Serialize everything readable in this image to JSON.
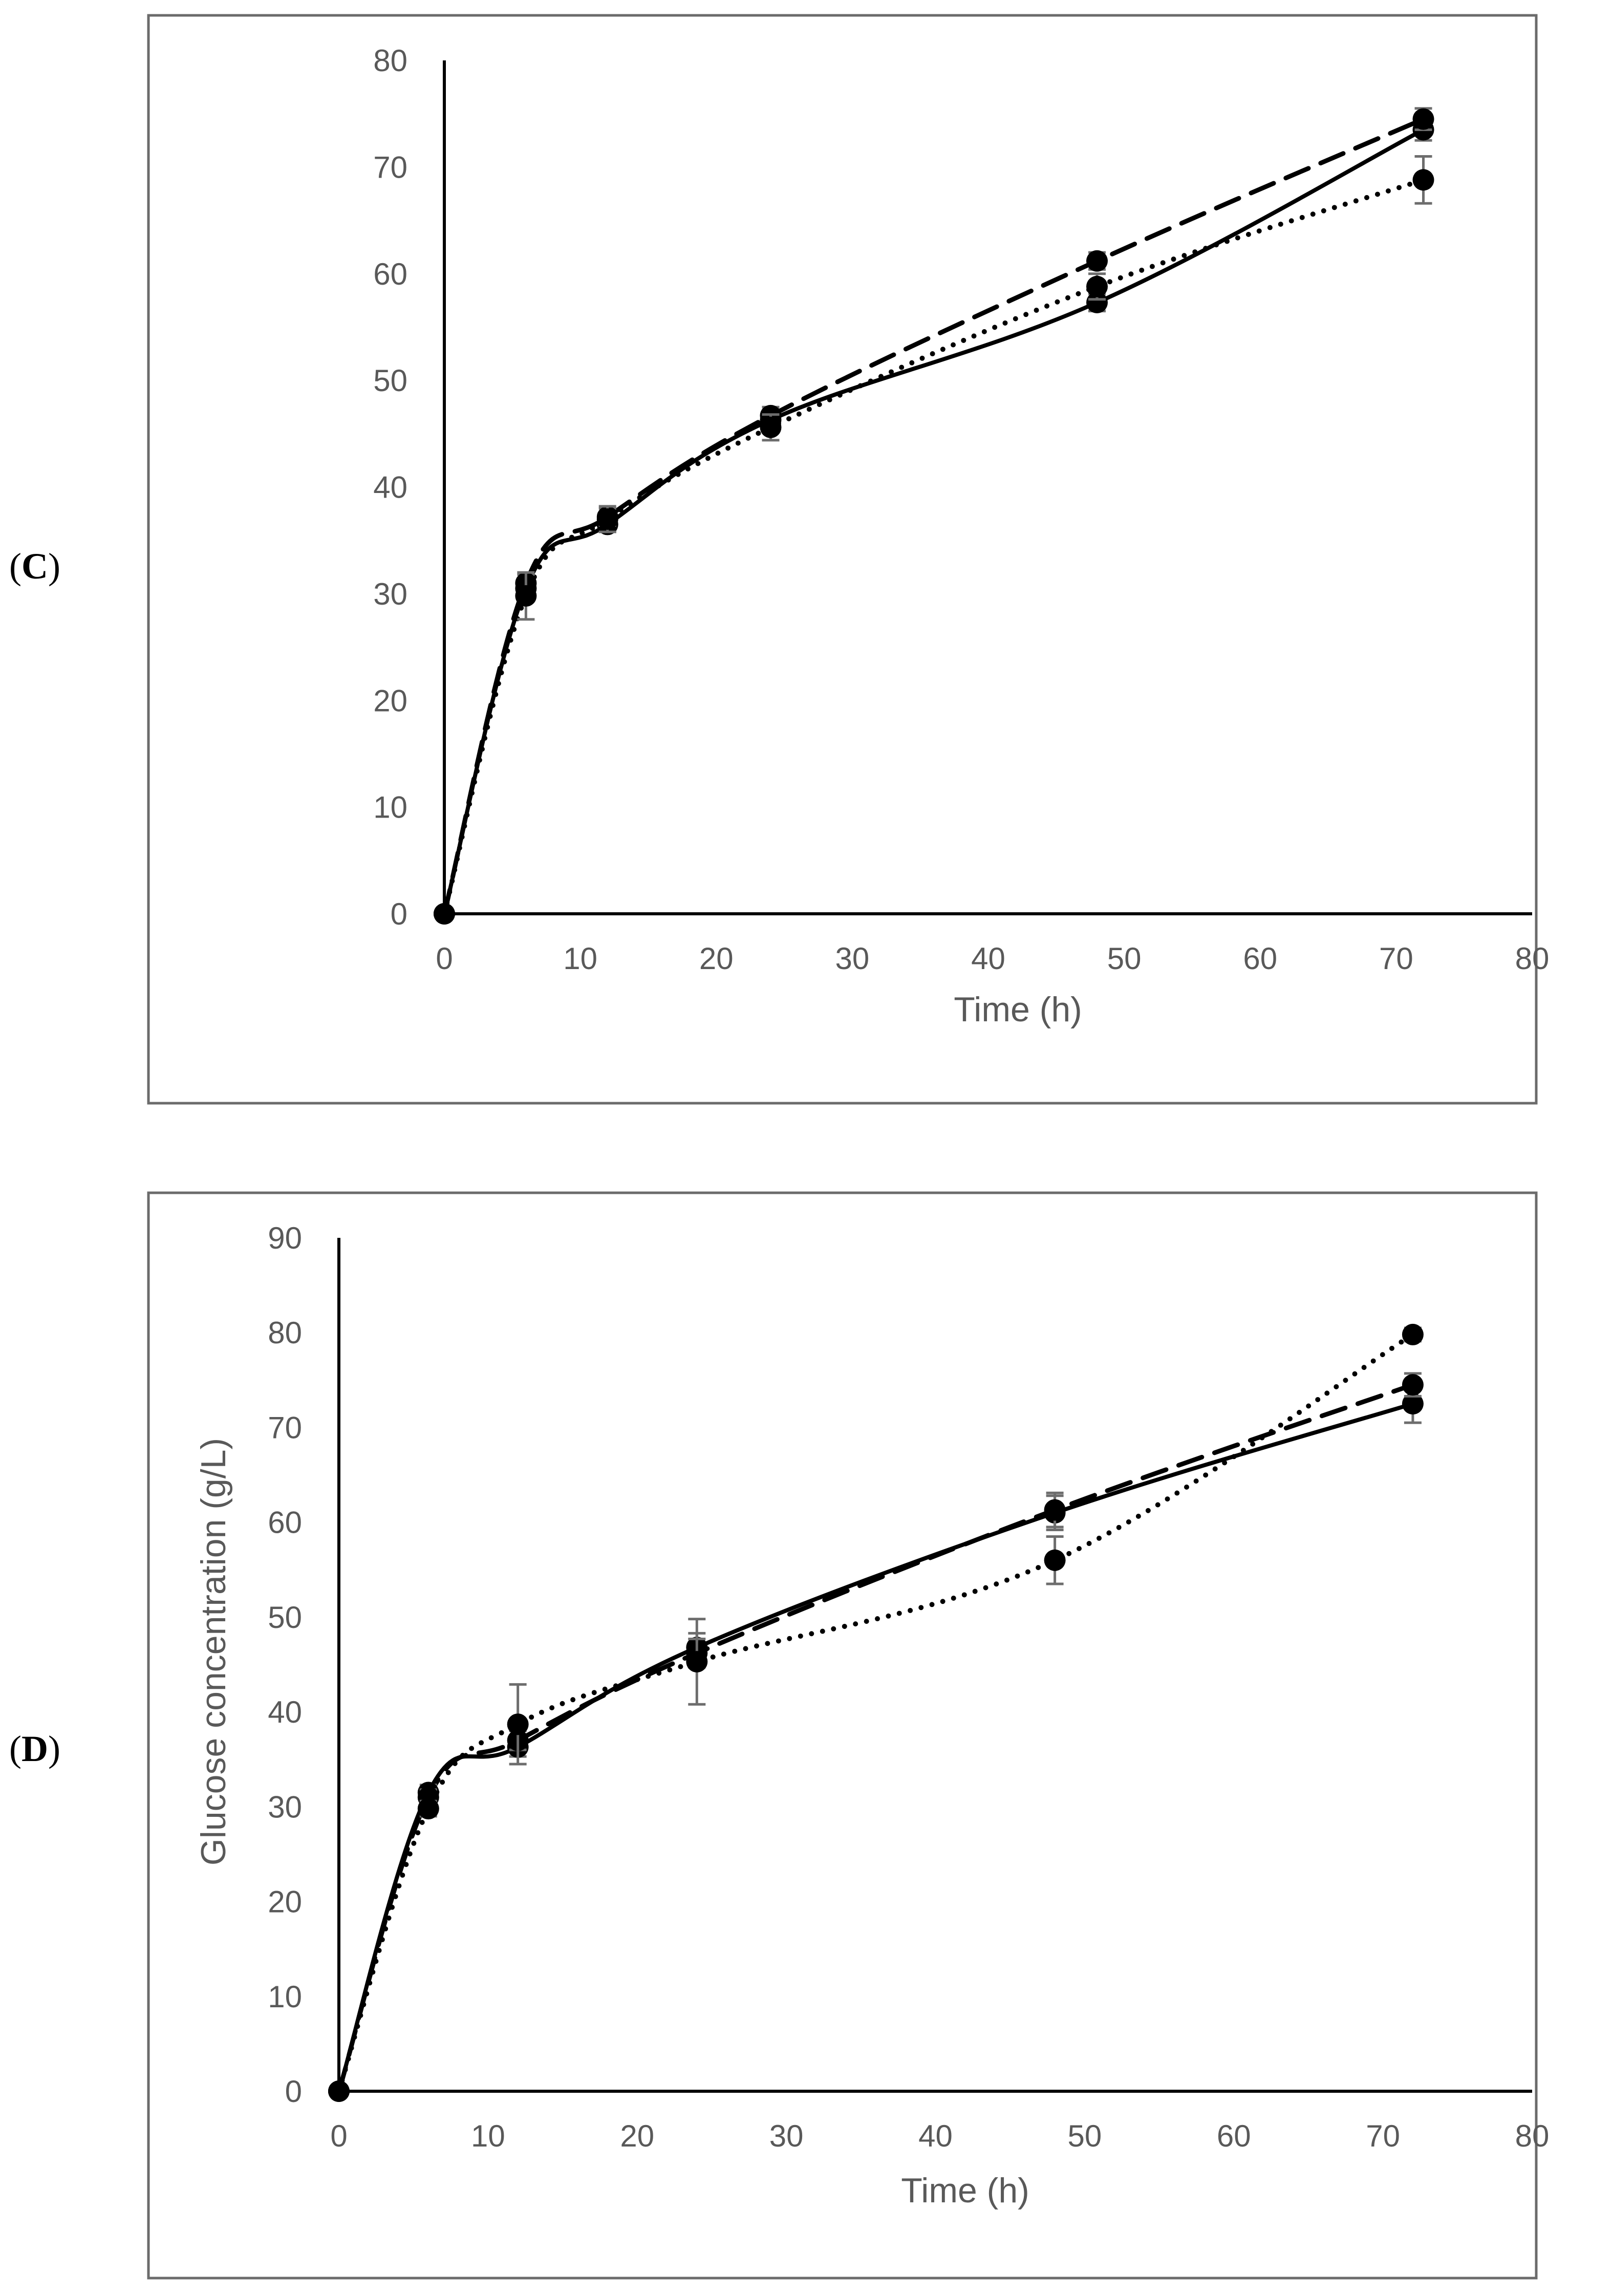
{
  "chart_data": [
    {
      "id": "C",
      "type": "line",
      "panel_label": "C",
      "title": "",
      "xlabel": "Time (h)",
      "ylabel": "",
      "xlim": [
        0,
        80
      ],
      "ylim": [
        0,
        80
      ],
      "xticks": [
        0,
        10,
        20,
        30,
        40,
        50,
        60,
        70,
        80
      ],
      "yticks": [
        0,
        10,
        20,
        30,
        40,
        50,
        60,
        70,
        80
      ],
      "x": [
        0,
        6,
        12,
        24,
        48,
        72
      ],
      "series": [
        {
          "name": "solid",
          "style": "solid",
          "values": [
            0,
            30.5,
            36.5,
            46.3,
            57.3,
            73.5
          ],
          "errors": [
            0,
            0.8,
            0.7,
            0.8,
            0.8,
            1.0
          ]
        },
        {
          "name": "dashed",
          "style": "dashed",
          "values": [
            0,
            31.0,
            37.2,
            46.7,
            61.2,
            74.5
          ],
          "errors": [
            0,
            0.8,
            0.8,
            0.8,
            0.8,
            1.0
          ]
        },
        {
          "name": "dotted",
          "style": "dotted",
          "values": [
            0,
            29.8,
            37.0,
            45.6,
            58.8,
            68.8
          ],
          "errors": [
            0,
            2.2,
            1.2,
            1.2,
            1.2,
            2.2
          ]
        }
      ]
    },
    {
      "id": "D",
      "type": "line",
      "panel_label": "D",
      "title": "",
      "xlabel": "Time (h)",
      "ylabel": "Glucose concentration (g/L)",
      "xlim": [
        0,
        80
      ],
      "ylim": [
        0,
        90
      ],
      "xticks": [
        0,
        10,
        20,
        30,
        40,
        50,
        60,
        70,
        80
      ],
      "yticks": [
        0,
        10,
        20,
        30,
        40,
        50,
        60,
        70,
        80,
        90
      ],
      "x": [
        0,
        6,
        12,
        24,
        48,
        72
      ],
      "series": [
        {
          "name": "solid",
          "style": "solid",
          "values": [
            0,
            31.5,
            36.3,
            46.8,
            61.0,
            72.5
          ],
          "errors": [
            0,
            0.8,
            1.0,
            1.5,
            1.8,
            2.0
          ]
        },
        {
          "name": "dashed",
          "style": "dashed",
          "values": [
            0,
            31.0,
            37.0,
            46.2,
            61.3,
            74.5
          ],
          "errors": [
            0,
            0.8,
            1.0,
            1.5,
            1.8,
            1.2
          ]
        },
        {
          "name": "dotted",
          "style": "dotted",
          "values": [
            0,
            29.8,
            38.7,
            45.3,
            56.0,
            79.8
          ],
          "errors": [
            0,
            0.8,
            4.2,
            4.5,
            2.5,
            0.7
          ]
        }
      ]
    }
  ]
}
